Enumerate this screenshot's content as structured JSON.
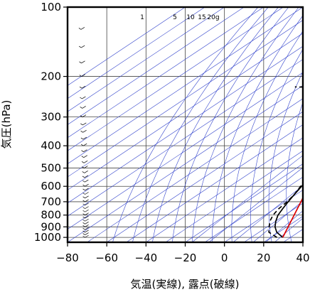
{
  "chart_data": {
    "type": "line",
    "title": "",
    "xlabel": "気温(実線), 露点(破線)",
    "ylabel": "気圧(hPa)",
    "xlim": [
      -80,
      40
    ],
    "ylim": [
      1050,
      100
    ],
    "y_scale": "log",
    "grid": true,
    "x_ticks": [
      -80,
      -60,
      -40,
      -20,
      0,
      20,
      40
    ],
    "x_tick_labels": [
      "−80",
      "−60",
      "−40",
      "−20",
      "0",
      "20",
      "40"
    ],
    "y_ticks": [
      100,
      200,
      300,
      400,
      500,
      600,
      700,
      800,
      900,
      1000
    ],
    "y_tick_labels": [
      "100",
      "200",
      "300",
      "400",
      "500",
      "600",
      "700",
      "800",
      "900",
      "1000"
    ],
    "mixing_ratio_labels": [
      "1",
      "5",
      "10",
      "15",
      "20g"
    ],
    "series": [
      {
        "style": "solid",
        "color": "#000000",
        "points": [
          [
            1000,
            26
          ],
          [
            950,
            19
          ],
          [
            900,
            14
          ],
          [
            850,
            10
          ],
          [
            800,
            6.5
          ],
          [
            750,
            4
          ],
          [
            700,
            1.5
          ],
          [
            650,
            -1
          ],
          [
            600,
            -3.5
          ],
          [
            550,
            -6.5
          ],
          [
            500,
            -9.5
          ],
          [
            450,
            -13
          ],
          [
            400,
            -16.5
          ],
          [
            370,
            -19
          ],
          [
            350,
            -21
          ],
          [
            320,
            -24
          ],
          [
            300,
            -27
          ],
          [
            270,
            -31
          ],
          [
            250,
            -35
          ],
          [
            230,
            -39
          ],
          [
            210,
            -44
          ],
          [
            200,
            -47
          ],
          [
            180,
            -51
          ],
          [
            160,
            -57
          ],
          [
            150,
            -60
          ],
          [
            130,
            -66
          ],
          [
            115,
            -70
          ],
          [
            100,
            -73
          ]
        ]
      },
      {
        "style": "dashed",
        "color": "#000000",
        "points": [
          [
            1000,
            23
          ],
          [
            950,
            15
          ],
          [
            900,
            11
          ],
          [
            850,
            7
          ],
          [
            800,
            4
          ],
          [
            750,
            2
          ],
          [
            700,
            1
          ],
          [
            650,
            -1
          ],
          [
            600,
            -4
          ],
          [
            550,
            -8
          ],
          [
            500,
            -12
          ],
          [
            480,
            -8
          ],
          [
            440,
            -18
          ],
          [
            420,
            -26
          ],
          [
            410,
            -30
          ],
          [
            395,
            -31
          ],
          [
            380,
            -28
          ],
          [
            370,
            -22
          ],
          [
            350,
            -20
          ],
          [
            320,
            -24
          ],
          [
            300,
            -28
          ],
          [
            270,
            -33
          ],
          [
            250,
            -37
          ],
          [
            230,
            -39
          ],
          [
            225,
            -48
          ],
          [
            222,
            -83
          ]
        ]
      },
      {
        "style": "solid",
        "color": "#dd0000",
        "points": [
          [
            1000,
            26
          ],
          [
            700,
            8
          ],
          [
            500,
            -9
          ],
          [
            400,
            -19
          ],
          [
            300,
            -32
          ],
          [
            200,
            -52
          ],
          [
            150,
            -64
          ],
          [
            120,
            -75
          ],
          [
            115,
            -77
          ]
        ]
      }
    ],
    "wind_barbs_x": -70
  }
}
